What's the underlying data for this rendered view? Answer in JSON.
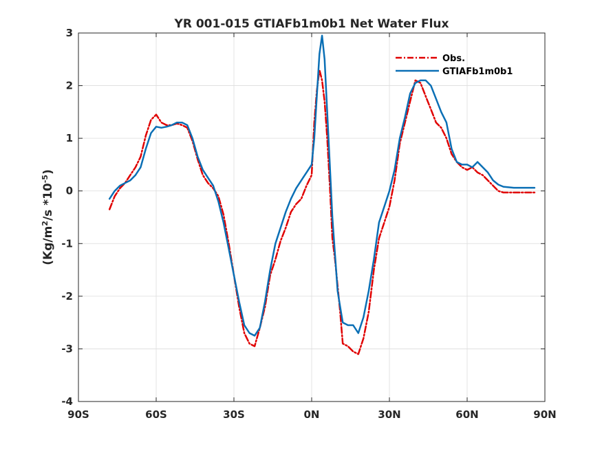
{
  "chart_data": {
    "type": "line",
    "title": "YR 001-015 GTIAFb1m0b1  Net Water Flux",
    "xlabel": "",
    "ylabel_base": "(Kg/m",
    "ylabel_sup1": "2",
    "ylabel_mid": "/s *10",
    "ylabel_sup2": "-5",
    "ylabel_end": ")",
    "xlim": [
      -90,
      90
    ],
    "ylim": [
      -4,
      3
    ],
    "x_ticks": [
      -90,
      -60,
      -30,
      0,
      30,
      60,
      90
    ],
    "x_tick_labels": [
      "90S",
      "60S",
      "30S",
      "0N",
      "30N",
      "60N",
      "90N"
    ],
    "y_ticks": [
      -4,
      -3,
      -2,
      -1,
      0,
      1,
      2,
      3
    ],
    "y_tick_labels": [
      "-4",
      "-3",
      "-2",
      "-1",
      "0",
      "1",
      "2",
      "3"
    ],
    "grid": true,
    "legend_position": "top-right",
    "series": [
      {
        "name": "Obs.",
        "color": "#e00000",
        "dash": "dashdot",
        "x": [
          -78,
          -76,
          -74,
          -72,
          -70,
          -68,
          -66,
          -64,
          -62,
          -60,
          -58,
          -56,
          -54,
          -52,
          -50,
          -48,
          -46,
          -44,
          -42,
          -40,
          -38,
          -36,
          -34,
          -32,
          -30,
          -28,
          -26,
          -24,
          -22,
          -20,
          -18,
          -16,
          -14,
          -12,
          -10,
          -8,
          -6,
          -4,
          -2,
          0,
          1,
          2,
          3,
          4,
          5,
          6,
          7,
          8,
          9,
          10,
          11,
          12,
          14,
          16,
          18,
          20,
          22,
          24,
          26,
          28,
          30,
          32,
          34,
          36,
          38,
          40,
          42,
          44,
          46,
          48,
          50,
          52,
          54,
          56,
          58,
          60,
          62,
          64,
          66,
          68,
          70,
          72,
          74,
          76,
          78,
          80,
          82,
          84,
          86
        ],
        "y": [
          -0.35,
          -0.1,
          0.05,
          0.15,
          0.3,
          0.45,
          0.65,
          1.05,
          1.35,
          1.45,
          1.3,
          1.25,
          1.25,
          1.28,
          1.25,
          1.2,
          0.95,
          0.6,
          0.3,
          0.15,
          0.05,
          -0.1,
          -0.45,
          -1.0,
          -1.6,
          -2.2,
          -2.7,
          -2.9,
          -2.95,
          -2.6,
          -2.2,
          -1.6,
          -1.3,
          -0.95,
          -0.7,
          -0.4,
          -0.25,
          -0.15,
          0.1,
          0.3,
          1.3,
          1.9,
          2.3,
          2.1,
          1.7,
          1.0,
          0.1,
          -0.9,
          -1.3,
          -1.8,
          -2.3,
          -2.9,
          -2.95,
          -3.05,
          -3.1,
          -2.8,
          -2.3,
          -1.5,
          -0.9,
          -0.6,
          -0.3,
          0.2,
          0.9,
          1.3,
          1.7,
          2.1,
          2.05,
          1.8,
          1.55,
          1.3,
          1.2,
          1.0,
          0.7,
          0.55,
          0.45,
          0.4,
          0.45,
          0.35,
          0.3,
          0.2,
          0.1,
          0.0,
          -0.03,
          -0.03,
          -0.03,
          -0.03,
          -0.03,
          -0.03,
          -0.03
        ]
      },
      {
        "name": "GTIAFb1m0b1",
        "color": "#0a6fb5",
        "dash": "solid",
        "x": [
          -78,
          -76,
          -74,
          -72,
          -70,
          -68,
          -66,
          -64,
          -62,
          -60,
          -58,
          -56,
          -54,
          -52,
          -50,
          -48,
          -46,
          -44,
          -42,
          -40,
          -38,
          -36,
          -34,
          -32,
          -30,
          -28,
          -26,
          -24,
          -22,
          -20,
          -18,
          -16,
          -14,
          -12,
          -10,
          -8,
          -6,
          -4,
          -2,
          0,
          1,
          2,
          3,
          4,
          5,
          6,
          7,
          8,
          9,
          10,
          11,
          12,
          14,
          16,
          18,
          20,
          22,
          24,
          26,
          28,
          30,
          32,
          34,
          36,
          38,
          40,
          42,
          44,
          46,
          48,
          50,
          52,
          54,
          56,
          58,
          60,
          62,
          64,
          66,
          68,
          70,
          72,
          74,
          76,
          78,
          80,
          82,
          84,
          86
        ],
        "y": [
          -0.15,
          0.0,
          0.1,
          0.15,
          0.2,
          0.3,
          0.45,
          0.8,
          1.1,
          1.22,
          1.2,
          1.22,
          1.25,
          1.3,
          1.3,
          1.25,
          1.0,
          0.65,
          0.4,
          0.25,
          0.1,
          -0.2,
          -0.6,
          -1.1,
          -1.6,
          -2.1,
          -2.55,
          -2.7,
          -2.75,
          -2.6,
          -2.1,
          -1.5,
          -1.0,
          -0.7,
          -0.4,
          -0.15,
          0.05,
          0.2,
          0.35,
          0.5,
          1.0,
          1.8,
          2.6,
          2.95,
          2.5,
          1.5,
          0.5,
          -0.5,
          -1.2,
          -1.9,
          -2.2,
          -2.5,
          -2.55,
          -2.55,
          -2.7,
          -2.4,
          -1.9,
          -1.3,
          -0.6,
          -0.3,
          0.0,
          0.4,
          1.0,
          1.4,
          1.85,
          2.05,
          2.1,
          2.1,
          2.0,
          1.75,
          1.5,
          1.3,
          0.8,
          0.55,
          0.5,
          0.5,
          0.45,
          0.55,
          0.45,
          0.35,
          0.2,
          0.12,
          0.08,
          0.07,
          0.06,
          0.06,
          0.06,
          0.06,
          0.06
        ]
      }
    ]
  }
}
